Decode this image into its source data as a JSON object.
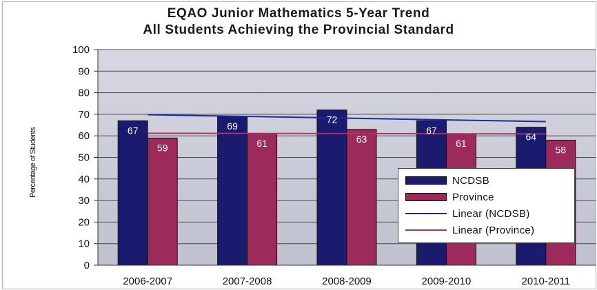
{
  "chart_data": {
    "type": "bar",
    "title_line1": "EQAO Junior Mathematics 5-Year Trend",
    "title_line2": "All Students Achieving the Provincial Standard",
    "xlabel": "",
    "ylabel": "Percentage of Students",
    "ylim": [
      0,
      100
    ],
    "yticks": [
      "0",
      "10",
      "20",
      "30",
      "40",
      "50",
      "60",
      "70",
      "80",
      "90",
      "100"
    ],
    "grid": true,
    "legend_position": "right",
    "categories": [
      "2006-2007",
      "2007-2008",
      "2008-2009",
      "2009-2010",
      "2010-2011"
    ],
    "series": [
      {
        "name": "NCDSB",
        "values": [
          67,
          69,
          72,
          67,
          64
        ],
        "labels": [
          "67",
          "69",
          "72",
          "67",
          "64"
        ],
        "color": "#1a1a6e"
      },
      {
        "name": "Province",
        "values": [
          59,
          61,
          63,
          61,
          58
        ],
        "labels": [
          "59",
          "61",
          "63",
          "61",
          "58"
        ],
        "color": "#9c2a5a"
      }
    ],
    "trendlines": [
      {
        "name": "Linear (NCDSB)",
        "start": 69.8,
        "end": 66.6,
        "color": "#1c2aa8"
      },
      {
        "name": "Linear (Province)",
        "start": 61.2,
        "end": 60.9,
        "color": "#b0306c"
      }
    ],
    "plot_background": "#c9cbd8"
  }
}
